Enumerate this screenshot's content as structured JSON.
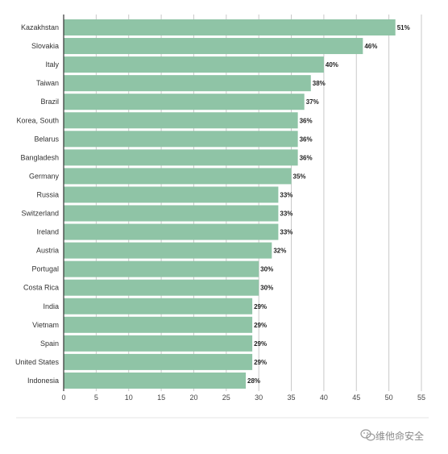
{
  "chart_data": {
    "type": "bar",
    "orientation": "horizontal",
    "title": "",
    "xlabel": "",
    "ylabel": "",
    "categories": [
      "Kazakhstan",
      "Slovakia",
      "Italy",
      "Taiwan",
      "Brazil",
      "Korea, South",
      "Belarus",
      "Bangladesh",
      "Germany",
      "Russia",
      "Switzerland",
      "Ireland",
      "Austria",
      "Portugal",
      "Costa Rica",
      "India",
      "Vietnam",
      "Spain",
      "United States",
      "Indonesia"
    ],
    "values": [
      51,
      46,
      40,
      38,
      37,
      36,
      36,
      36,
      35,
      33,
      33,
      33,
      32,
      30,
      30,
      29,
      29,
      29,
      29,
      28
    ],
    "value_labels": [
      "51%",
      "46%",
      "40%",
      "38%",
      "37%",
      "36%",
      "36%",
      "36%",
      "35%",
      "33%",
      "33%",
      "33%",
      "32%",
      "30%",
      "30%",
      "29%",
      "29%",
      "29%",
      "29%",
      "28%"
    ],
    "xlim": [
      0,
      55
    ],
    "xticks": [
      0,
      5,
      10,
      15,
      20,
      25,
      30,
      35,
      40,
      45,
      50,
      55
    ],
    "xtick_labels": [
      "0",
      "5",
      "10",
      "15",
      "20",
      "25",
      "30",
      "35",
      "40",
      "45",
      "50",
      "55"
    ],
    "grid": "vertical",
    "legend": "none",
    "colors": {
      "bar": "#8fc4a6",
      "grid": "#c9c9c9",
      "axis": "#333333",
      "separator": "#e6e6e6"
    }
  },
  "watermark": {
    "text": "维他命安全",
    "icon": "wechat-logo"
  }
}
